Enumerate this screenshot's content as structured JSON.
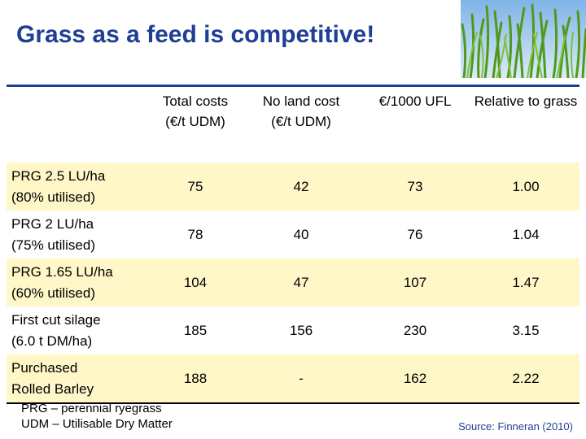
{
  "slide": {
    "title": "Grass as a feed is competitive!"
  },
  "table": {
    "headers": [
      "",
      "Total costs",
      "No land cost",
      "€/1000 UFL",
      "Relative to grass"
    ],
    "header_units": {
      "total": "(€/t UDM)",
      "noland": "(€/t UDM)"
    },
    "rows": [
      {
        "line1": "PRG 2.5 LU/ha",
        "line2": "(80% utilised)",
        "total": "75",
        "noland": "42",
        "ufl": "73",
        "relative": "1.00"
      },
      {
        "line1": "PRG 2 LU/ha",
        "line2": "(75% utilised)",
        "total": "78",
        "noland": "40",
        "ufl": "76",
        "relative": "1.04"
      },
      {
        "line1": "PRG 1.65 LU/ha",
        "line2": "(60% utilised)",
        "total": "104",
        "noland": "47",
        "ufl": "107",
        "relative": "1.47"
      },
      {
        "line1": "First cut silage",
        "line2": "(6.0 t DM/ha)",
        "total": "185",
        "noland": "156",
        "ufl": "230",
        "relative": "3.15"
      },
      {
        "line1": "Purchased",
        "line2": "Rolled Barley",
        "total": "188",
        "noland": "-",
        "ufl": "162",
        "relative": "2.22"
      }
    ]
  },
  "footnotes": {
    "prg": "PRG – perennial ryegrass",
    "udm": "UDM – Utilisable Dry Matter",
    "source": "Source: Finneran (2010)"
  },
  "colors": {
    "title": "#1f3f95",
    "row_highlight": "#fff7c8"
  },
  "icons": {
    "photo": "grass-photo"
  }
}
